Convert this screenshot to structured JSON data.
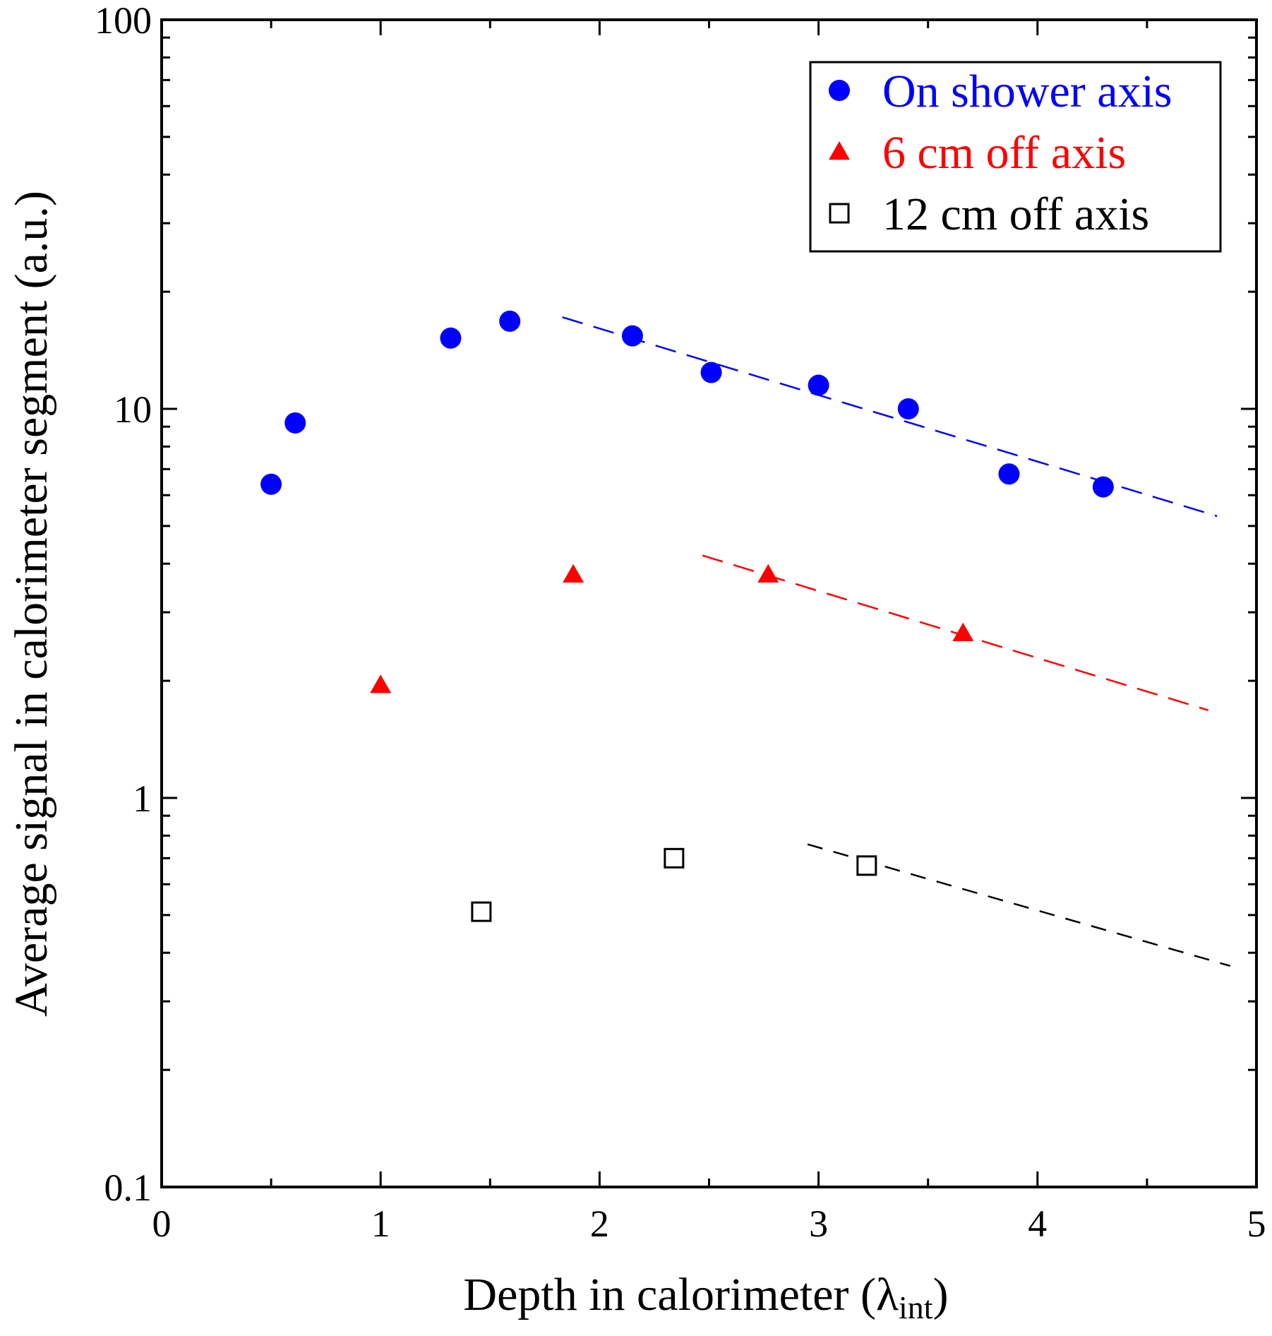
{
  "chart_data": {
    "type": "scatter",
    "title": "",
    "xlabel": "Depth in calorimeter (",
    "xlabel_symbol": "λ",
    "xlabel_subscript": "int",
    "xlabel_close": ")",
    "ylabel": "Average signal in calorimeter segment (a.u.)",
    "xlim": [
      0,
      5
    ],
    "ylim": [
      0.1,
      100
    ],
    "yscale": "log",
    "grid": false,
    "legend_position": "top-right",
    "x_ticks": [
      "0",
      "1",
      "2",
      "3",
      "4",
      "5"
    ],
    "y_ticks": [
      "0.1",
      "1",
      "10",
      "100"
    ],
    "series": [
      {
        "name": "On shower axis",
        "marker": "circle",
        "color": "#0000ff",
        "x": [
          0.5,
          0.61,
          1.32,
          1.59,
          2.15,
          2.51,
          3.0,
          3.41,
          3.87,
          4.3
        ],
        "y": [
          6.4,
          9.2,
          15.2,
          16.8,
          15.4,
          12.4,
          11.5,
          10.0,
          6.8,
          6.3
        ],
        "fit_line": {
          "x": [
            1.83,
            4.82
          ],
          "y": [
            17.2,
            5.3
          ]
        }
      },
      {
        "name": "6 cm off axis",
        "marker": "triangle",
        "color": "#ff0000",
        "x": [
          1.0,
          1.88,
          2.77,
          3.66
        ],
        "y": [
          1.95,
          3.75,
          3.75,
          2.65
        ],
        "fit_line": {
          "x": [
            2.47,
            4.78
          ],
          "y": [
            4.2,
            1.68
          ]
        }
      },
      {
        "name": "12 cm off axis",
        "marker": "square-open",
        "color": "#000000",
        "x": [
          1.46,
          2.34,
          3.22
        ],
        "y": [
          0.51,
          0.7,
          0.67
        ],
        "fit_line": {
          "x": [
            2.95,
            4.88
          ],
          "y": [
            0.76,
            0.37
          ]
        }
      }
    ]
  }
}
